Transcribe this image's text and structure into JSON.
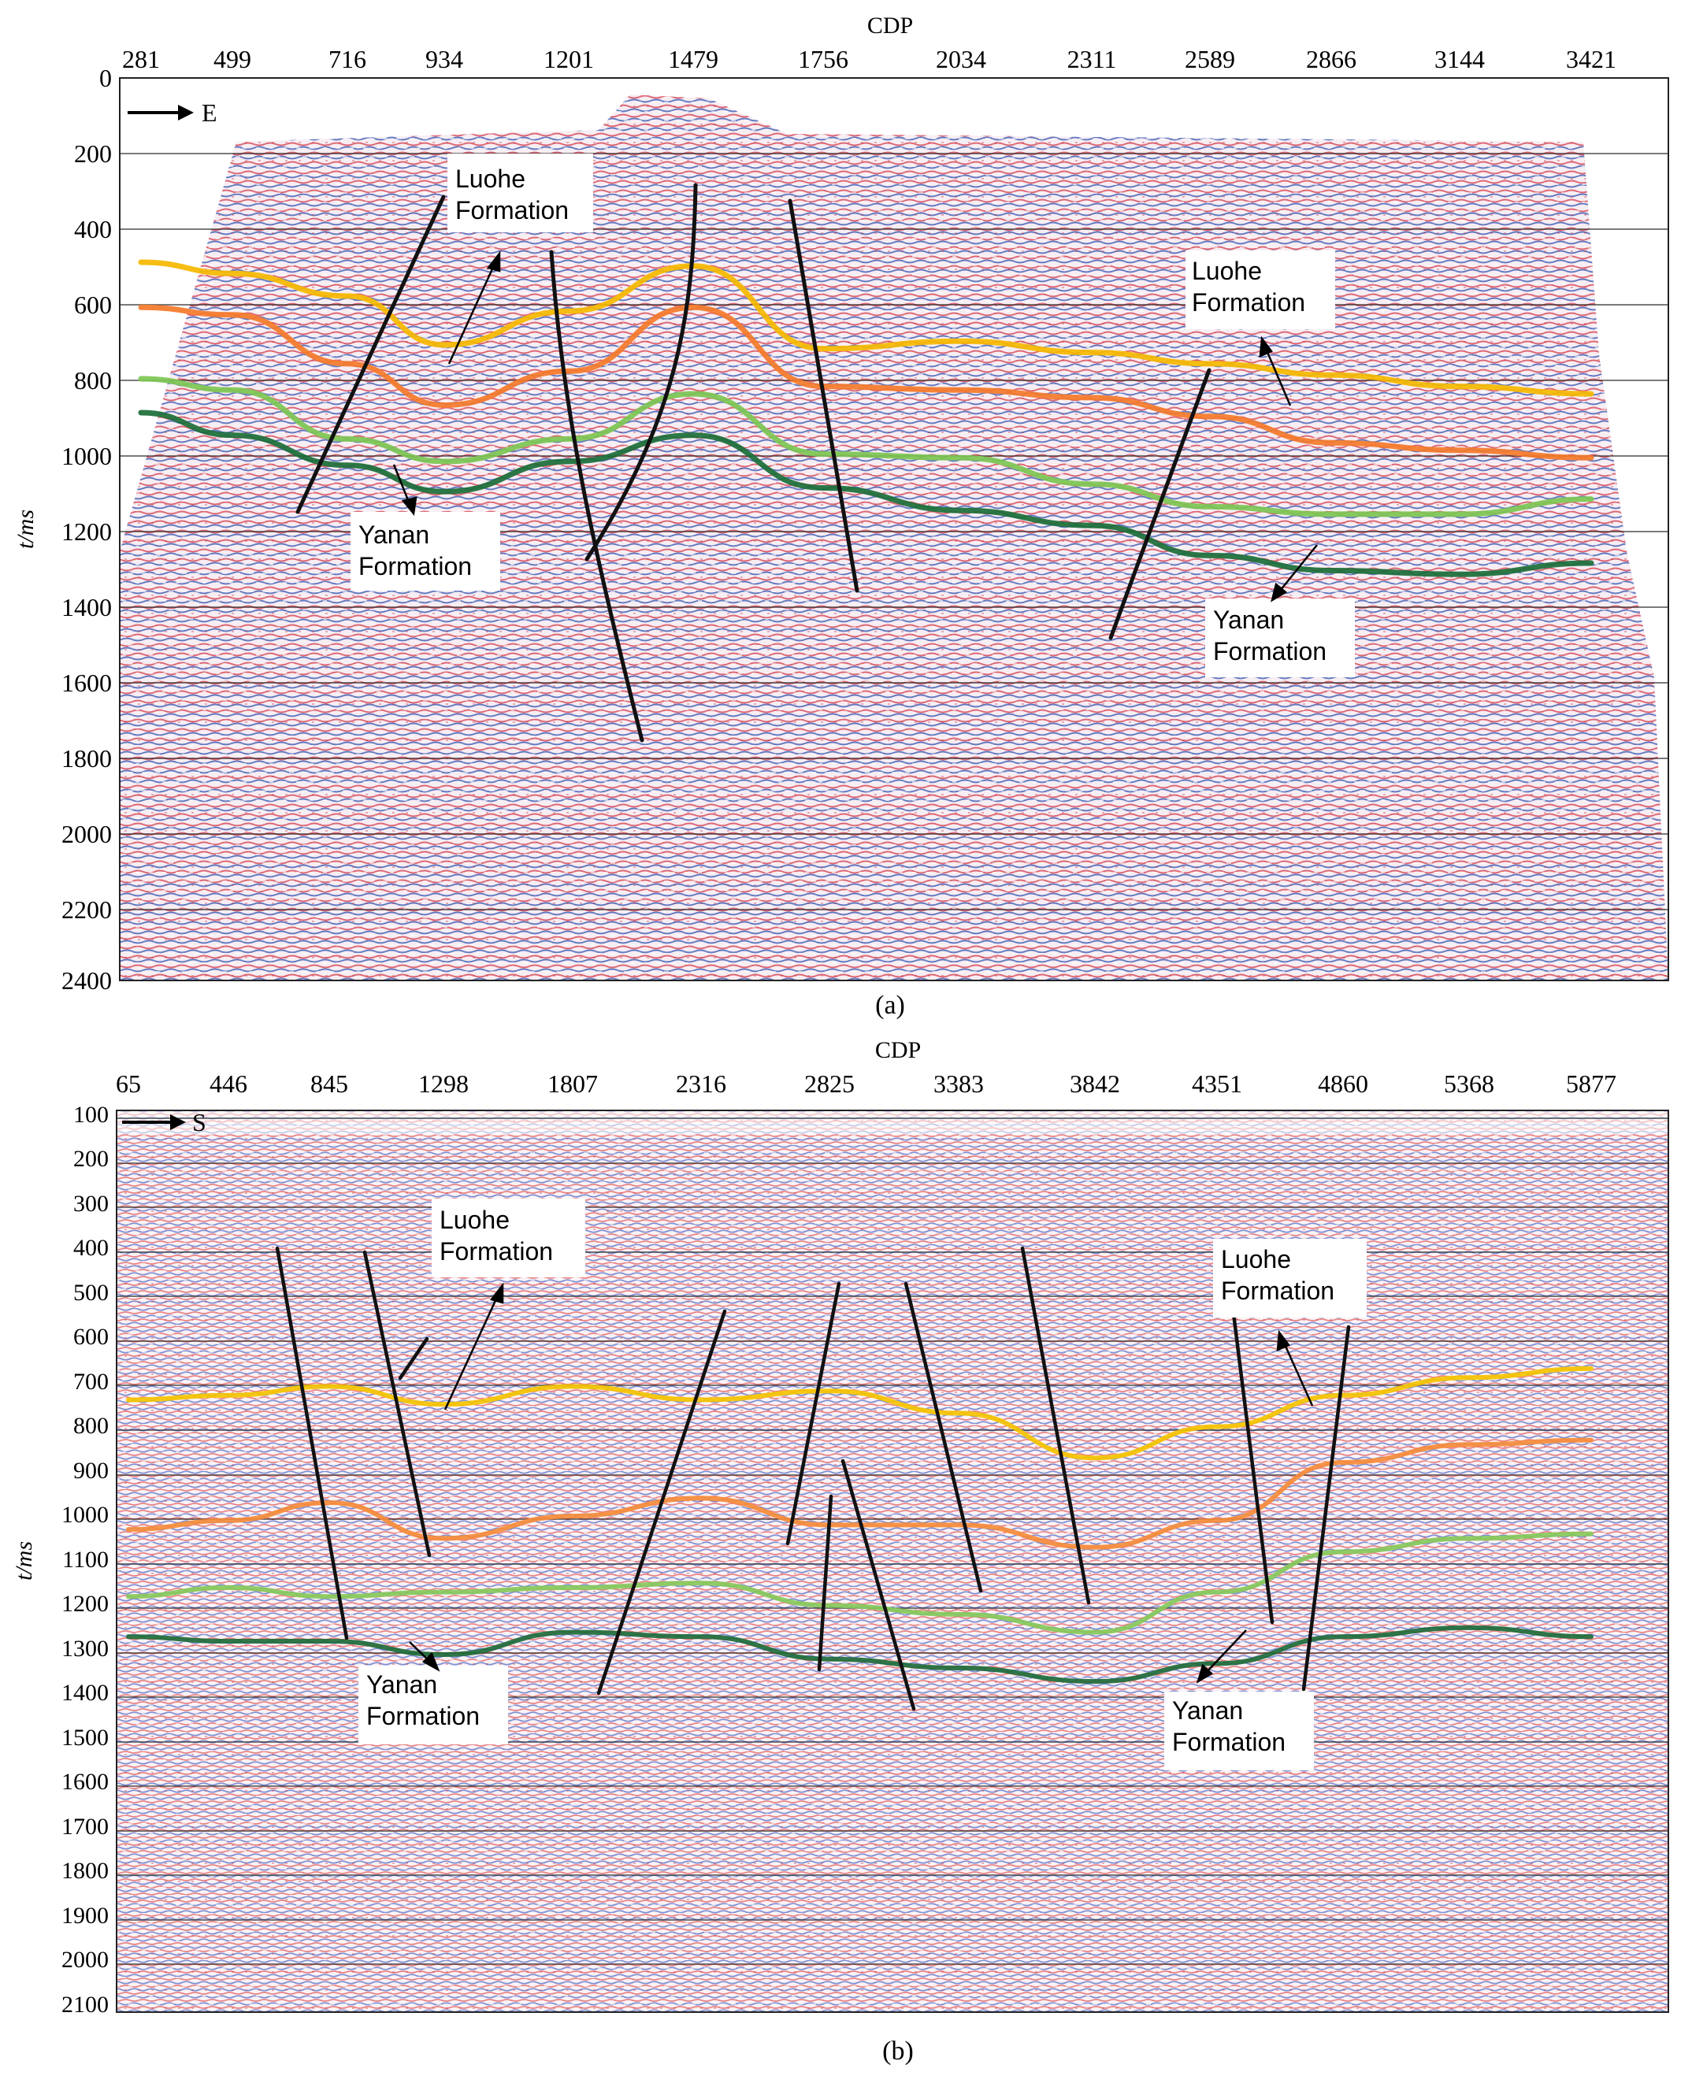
{
  "panels": [
    {
      "id": "a",
      "caption": "(a)",
      "x_axis_title": "CDP",
      "y_axis_title": "t/ms",
      "direction_label": "E",
      "x_ticks": [
        "281",
        "499",
        "716",
        "934",
        "1201",
        "1479",
        "1756",
        "2034",
        "2311",
        "2589",
        "2866",
        "3144",
        "3421"
      ],
      "y_ticks": [
        "0",
        "200",
        "400",
        "600",
        "800",
        "1000",
        "1200",
        "1400",
        "1600",
        "1800",
        "2000",
        "2200",
        "2400"
      ],
      "formation_labels": [
        {
          "line1": "Luohe",
          "line2": "Formation"
        },
        {
          "line1": "Luohe",
          "line2": "Formation"
        },
        {
          "line1": "Yanan",
          "line2": "Formation"
        },
        {
          "line1": "Yanan",
          "line2": "Formation"
        }
      ],
      "horizons": [
        {
          "color": "#f5b800",
          "x": [
            281,
            499,
            716,
            934,
            1201,
            1479,
            1756,
            2034,
            2311,
            2589,
            2866,
            3144,
            3421
          ],
          "t": [
            490,
            520,
            580,
            710,
            620,
            500,
            720,
            700,
            730,
            760,
            790,
            820,
            840
          ]
        },
        {
          "color": "#f47a2a",
          "x": [
            281,
            499,
            716,
            934,
            1201,
            1479,
            1756,
            2034,
            2311,
            2589,
            2866,
            3144,
            3421
          ],
          "t": [
            610,
            630,
            760,
            870,
            780,
            610,
            820,
            830,
            850,
            900,
            970,
            990,
            1010
          ]
        },
        {
          "color": "#7cc653",
          "x": [
            281,
            499,
            716,
            934,
            1201,
            1479,
            1756,
            2034,
            2311,
            2589,
            2866,
            3144,
            3421
          ],
          "t": [
            800,
            830,
            960,
            1020,
            960,
            840,
            1000,
            1010,
            1080,
            1140,
            1160,
            1160,
            1120
          ]
        },
        {
          "color": "#1b6e38",
          "x": [
            281,
            499,
            716,
            934,
            1201,
            1479,
            1756,
            2034,
            2311,
            2589,
            2866,
            3144,
            3421
          ],
          "t": [
            890,
            950,
            1030,
            1100,
            1020,
            950,
            1090,
            1150,
            1190,
            1270,
            1310,
            1320,
            1290
          ]
        }
      ]
    },
    {
      "id": "b",
      "caption": "(b)",
      "x_axis_title": "CDP",
      "y_axis_title": "t/ms",
      "direction_label": "S",
      "x_ticks": [
        "65",
        "446",
        "845",
        "1298",
        "1807",
        "2316",
        "2825",
        "3383",
        "3842",
        "4351",
        "4860",
        "5368",
        "5877"
      ],
      "y_ticks": [
        "100",
        "200",
        "300",
        "400",
        "500",
        "600",
        "700",
        "800",
        "900",
        "1000",
        "1100",
        "1200",
        "1300",
        "1400",
        "1500",
        "1600",
        "1700",
        "1800",
        "1900",
        "2000",
        "2100"
      ],
      "formation_labels": [
        {
          "line1": "Luohe",
          "line2": "Formation"
        },
        {
          "line1": "Luohe",
          "line2": "Formation"
        },
        {
          "line1": "Yanan",
          "line2": "Formation"
        },
        {
          "line1": "Yanan",
          "line2": "Formation"
        }
      ],
      "horizons": [
        {
          "color": "#f5c400",
          "x": [
            65,
            446,
            845,
            1298,
            1807,
            2316,
            2825,
            3383,
            3842,
            4351,
            4860,
            5368,
            5877
          ],
          "t": [
            730,
            720,
            700,
            740,
            700,
            730,
            710,
            760,
            860,
            790,
            720,
            680,
            660
          ]
        },
        {
          "color": "#f58c3a",
          "x": [
            65,
            446,
            845,
            1298,
            1807,
            2316,
            2825,
            3383,
            3842,
            4351,
            4860,
            5368,
            5877
          ],
          "t": [
            1020,
            1000,
            960,
            1040,
            990,
            950,
            1010,
            1010,
            1060,
            1000,
            870,
            830,
            820
          ]
        },
        {
          "color": "#86c95a",
          "x": [
            65,
            446,
            845,
            1298,
            1807,
            2316,
            2825,
            3383,
            3842,
            4351,
            4860,
            5368,
            5877
          ],
          "t": [
            1170,
            1150,
            1170,
            1160,
            1150,
            1140,
            1190,
            1210,
            1250,
            1160,
            1070,
            1040,
            1030
          ]
        },
        {
          "color": "#1e6b3a",
          "x": [
            65,
            446,
            845,
            1298,
            1807,
            2316,
            2825,
            3383,
            3842,
            4351,
            4860,
            5368,
            5877
          ],
          "t": [
            1260,
            1270,
            1270,
            1300,
            1250,
            1260,
            1310,
            1330,
            1360,
            1320,
            1260,
            1240,
            1260
          ]
        }
      ]
    }
  ]
}
